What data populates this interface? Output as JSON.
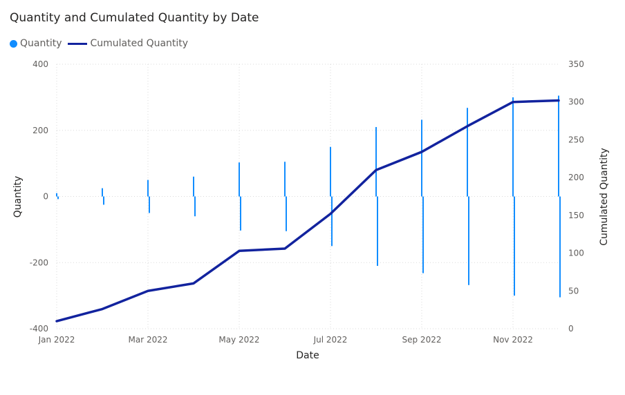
{
  "chart_data": {
    "type": "bar+line",
    "title": "Quantity and Cumulated Quantity by Date",
    "xlabel": "Date",
    "ylabel": "Quantity",
    "y2label": "Cumulated Quantity",
    "ylim": [
      -400,
      400
    ],
    "y2lim": [
      0,
      350
    ],
    "yticks": [
      400,
      200,
      0,
      -200,
      -400
    ],
    "y2ticks": [
      350,
      300,
      250,
      200,
      150,
      100,
      50,
      0
    ],
    "xticks": [
      "Jan 2022",
      "Mar 2022",
      "May 2022",
      "Jul 2022",
      "Sep 2022",
      "Nov 2022"
    ],
    "grid": true,
    "legend_position": "top-left",
    "x": [
      "2022-01",
      "2022-02",
      "2022-03",
      "2022-04",
      "2022-05",
      "2022-06",
      "2022-07",
      "2022-08",
      "2022-09",
      "2022-10",
      "2022-11",
      "2022-12"
    ],
    "series": [
      {
        "name": "Quantity",
        "type": "bar",
        "color": "#118DFF",
        "positive": [
          10,
          25,
          50,
          60,
          103,
          105,
          150,
          210,
          232,
          268,
          300,
          305
        ],
        "negative": [
          -8,
          -25,
          -50,
          -60,
          -103,
          -105,
          -150,
          -210,
          -232,
          -268,
          -300,
          -305
        ]
      },
      {
        "name": "Cumulated Quantity",
        "type": "line",
        "axis": "right",
        "color": "#12239E",
        "values": [
          10,
          26,
          50,
          60,
          103,
          106,
          152,
          210,
          234,
          268,
          300,
          302
        ]
      }
    ]
  }
}
